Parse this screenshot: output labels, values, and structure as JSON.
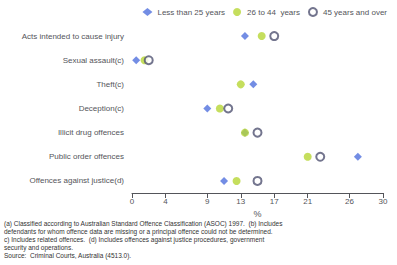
{
  "chart_data": {
    "type": "scatter",
    "categories": [
      "Acts intended to cause injury",
      "Sexual assault(c)",
      "Theft(c)",
      "Deception(c)",
      "Illicit drug offences",
      "Public order offences",
      "Offences against justice(d)"
    ],
    "series": [
      {
        "name": "Less than 25 years",
        "marker": "diamond",
        "values": [
          13.5,
          0.5,
          14.5,
          9.0,
          13.5,
          27.0,
          11.0
        ]
      },
      {
        "name": "26 to 44  years",
        "marker": "dotted_circle",
        "values": [
          15.5,
          1.5,
          13.0,
          10.5,
          13.5,
          21.0,
          12.5
        ]
      },
      {
        "name": "45 years and over",
        "marker": "open_circle",
        "values": [
          17.0,
          2.0,
          null,
          11.5,
          15.0,
          22.5,
          15.0
        ]
      }
    ],
    "xlabel": "%",
    "xlim": [
      0,
      30
    ],
    "xticks": [
      0,
      4,
      9,
      13,
      17,
      21,
      26,
      30
    ],
    "legend": "upper right",
    "annotations": [
      "(a) Classified according to Australian Standard Offence Classification (ASOC) 1997.  (b) Includes",
      "defendants for whom offence data are missing or a principal offence could not be determined.",
      "c) Includes related offences.  (d) Includes offences against justice procedures, government",
      "security and operations.",
      "Source:  Criminal Courts, Australia (4513.0)."
    ]
  }
}
